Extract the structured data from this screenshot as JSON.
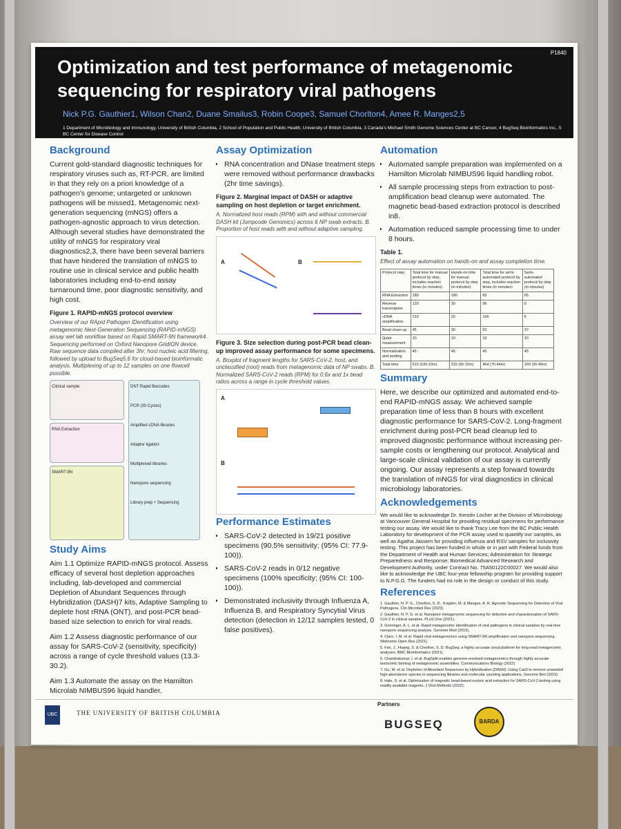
{
  "header": {
    "code": "P1840",
    "title": "Optimization and test performance of metagenomic sequencing for respiratory viral pathogens",
    "authors": "Nick P.G. Gauthier1, Wilson Chan2, Duane Smailus3, Robin Coope3, Samuel Chorlton4, Amee R. Manges2,5",
    "affiliations": "1 Department of Microbiology and Immunology, University of British Columbia, 2 School of Population and Public Health, University of British Columbia, 3 Canada's Michael Smith Genome Sciences Center at BC Cancer, 4 BugSeq Bioinformatics Inc., 5 BC Center for Disease Control"
  },
  "background": {
    "heading": "Background",
    "text": "Current gold-standard diagnostic techniques for respiratory viruses such as, RT-PCR, are limited in that they rely on a priori knowledge of a pathogen's genome; untargeted or unknown pathogens will be missed1. Metagenomic next-generation sequencing (mNGS) offers a pathogen-agnostic approach to virus detection. Although several studies have demonstrated the utility of mNGS for respiratory viral diagnostics2,3, there have been several barriers that have hindered the translation of mNGS to routine use in clinical service and public health laboratories including end-to-end assay turnaround time, poor diagnostic sensitivity, and high cost."
  },
  "figure1": {
    "title": "Figure 1. RAPID-mNGS protocol overview",
    "caption": "Overview of our RApid Pathogen IDentification using metagenomic Next-Generation Sequencing (RAPID-mNGS) assay wet lab workflow based on Rapid SMART-9N framework4. Sequencing performed on Oxford Nanopore GridION device. Raw sequence data compiled after 3hr; host nucleic acid filtering, followed by upload to BugSeq5,6 for cloud-based bioinformatic analysis. Multiplexing of up to 12 samples on one flowcell possible.",
    "panels": [
      "Clinical sample",
      "RNA Extraction",
      "SMART-9N",
      "DNT Rapid Barcodes",
      "PCR (30 Cycles)",
      "Amplified cDNA libraries",
      "Adaptor ligation",
      "Multiplexed libraries",
      "Nanopore sequencing",
      "Library prep + Sequencing"
    ]
  },
  "study_aims": {
    "heading": "Study Aims",
    "items": [
      "Aim 1.1 Optimize RAPID-mNGS protocol. Assess efficacy of several host depletion approaches including, lab-developed and commercial Depletion of Abundant Sequences through Hybridization (DASH)7 kits, Adaptive Sampling to deplete host rRNA (ONT), and post-PCR bead-based size selection to enrich for viral reads.",
      "Aim 1.2 Assess diagnostic performance of our assay for SARS-CoV-2 (sensitivity, specificity) across a range of cycle threshold values (13.3-30.2).",
      "Aim 1.3 Automate the assay on the Hamilton Microlab NIMBUS96 liquid handler."
    ]
  },
  "assay_optimization": {
    "heading": "Assay Optimization",
    "items": [
      "RNA concentration and DNase treatment steps were removed without performance drawbacks (2hr time savings)."
    ]
  },
  "figure2": {
    "title": "Figure 2. Marginal impact of DASH or adaptive sampling on host depletion or target enrichment.",
    "caption": "A. Normalized host reads (RPM) with and without commercial DASH kit (Jumpcode Genomics) across 6 NP swab extracts. B. Proportion of host reads with and without adaptive sampling.",
    "panels": [
      "A",
      "B"
    ]
  },
  "figure3": {
    "title": "Figure 3. Size selection during post-PCR bead clean-up improved assay performance for some specimens.",
    "caption": "A. Boxplot of fragment lengths for SARS-CoV-2, host, and unclassified (root) reads from metagenomic data of NP swabs. B. Normalized SARS-CoV-2 reads (RPM) for 0.6x and 1x bead ratios across a range in cycle threshold values.",
    "panels": [
      "A",
      "B"
    ]
  },
  "performance": {
    "heading": "Performance Estimates",
    "items": [
      "SARS-CoV-2 detected in 19/21 positive specimens (90.5% sensitivity; (95% CI: 77.9-100)).",
      "SARS-CoV-2 reads in 0/12 negative specimens (100% specificity; (95% CI: 100-100)).",
      "Demonstrated inclusivity through Influenza A, Influenza B, and Respiratory Syncytial Virus detection (detection in 12/12 samples tested, 0 false positives)."
    ]
  },
  "automation": {
    "heading": "Automation",
    "items": [
      "Automated sample preparation was implemented on a Hamilton Microlab NIMBUS96 liquid handling robot.",
      "All sample processing steps from extraction to post-amplification bead cleanup were automated. The magnetic bead-based extraction protocol is described in8.",
      "Automation reduced sample processing time to under 8 hours."
    ]
  },
  "table1": {
    "title": "Table 1.",
    "caption": "Effect of assay automation on hands-on and assay completion time.",
    "columns": [
      "Protocol step",
      "Total time for manual protocol by step, includes reaction times (in minutes)",
      "Hands-on time for manual protocol by step (in minutes)",
      "Total time for semi-automated protocol by step, includes reaction times (in minutes)",
      "Semi-automated protocol by step (in minutes)"
    ],
    "rows": [
      [
        "RNA Extraction",
        "180",
        "180",
        "65",
        "65"
      ],
      [
        "Reverse transcription",
        "120",
        "30",
        "96",
        "6"
      ],
      [
        "cDNA amplification",
        "210",
        "20",
        "196",
        "6"
      ],
      [
        "Bead clean-up",
        "45",
        "30",
        "52",
        "37"
      ],
      [
        "Qubit measurement",
        "10",
        "10",
        "10",
        "10"
      ],
      [
        "Normalization and pooling",
        "45",
        "45",
        "45",
        "45"
      ],
      [
        "Total time",
        "610 (10h:10m)",
        "315 (5h:15m)",
        "464 (7h:44m)",
        "169 (2h:49m)"
      ]
    ]
  },
  "summary": {
    "heading": "Summary",
    "text": "Here, we describe our optimized and automated end-to-end RAPID-mNGS assay. We achieved sample preparation time of less than 8 hours with excellent diagnostic performance for SARS-CoV-2. Long-fragment enrichment during post-PCR bead cleanup led to improved diagnostic performance without increasing per-sample costs or lengthening our protocol. Analytical and large-scale clinical validation of our assay is currently ongoing. Our assay represents a step forward towards the translation of mNGS for viral diagnostics in clinical microbiology laboratories."
  },
  "acknowledgements": {
    "heading": "Acknowledgements",
    "text": "We would like to acknowledge Dr. Kerstin Locher at the Division of Microbiology at Vancouver General Hospital for providing residual specimens for performance testing our assay. We would like to thank Tracy Lee from the BC Public Health Laboratory for development of the PCR assay used to quantify our samples, as well as Agatha Jassem for providing influenza and RSV samples for inclusivity testing. This project has been funded in whole or in part with Federal funds from the Department of Health and Human Services; Administration for Strategic Preparedness and Response; Biomedical Advanced Research and Development Authority, under Contract No. 75A50122C00027. We would also like to acknowledge the UBC four-year fellowship program for providing support to N.P.G.G. The funders had no role in the design or conduct of this study."
  },
  "references": {
    "heading": "References",
    "items": [
      "1. Gauthier, N. P. G., Chorlton, S. D., Krajden, M. & Manges, A. R. Agnostic Sequencing for Detection of Viral Pathogens. Clin Microbiol Rev (2023).",
      "2. Gauthier, N. P. G. et al. Nanopore metagenomic sequencing for detection and characterization of SARS-CoV-2 in clinical samples. PLoS One (2021).",
      "3. Greninger, A. L. et al. Rapid metagenomic identification of viral pathogens in clinical samples by real-time nanopore sequencing analysis. Genome Med (2015).",
      "4. Claro, I. M. et al. Rapid viral metagenomics using SMART-9N amplification and nanopore sequencing. Wellcome Open Res (2021).",
      "5. Fan, J., Huang, S. & Chorlton, S. D. BugSeq: a highly accurate cloud platform for long-read metagenomic analyses. BMC Bioinformatics (2021).",
      "6. Chandrakumar, I. et al. BugSplit enables genome-resolved metagenomics through highly accurate taxonomic binning of metagenomic assemblies. Communications Biology (2022).",
      "7. Gu, W. et al. Depletion of Abundant Sequences by Hybridization (DASH): Using Cas9 to remove unwanted high-abundance species in sequencing libraries and molecular counting applications. Genome Biol (2016).",
      "8. Hale, S. et al. Optimization of magnetic bead-based nucleic acid extraction for SARS-CoV-2 testing using readily available reagents. J Virol Methods (2022)."
    ]
  },
  "footer": {
    "ubc": "UBC",
    "university": "THE UNIVERSITY OF BRITISH COLUMBIA",
    "partners_label": "Partners",
    "partner1": "BUGSEQ",
    "partner2": "BARDA"
  }
}
